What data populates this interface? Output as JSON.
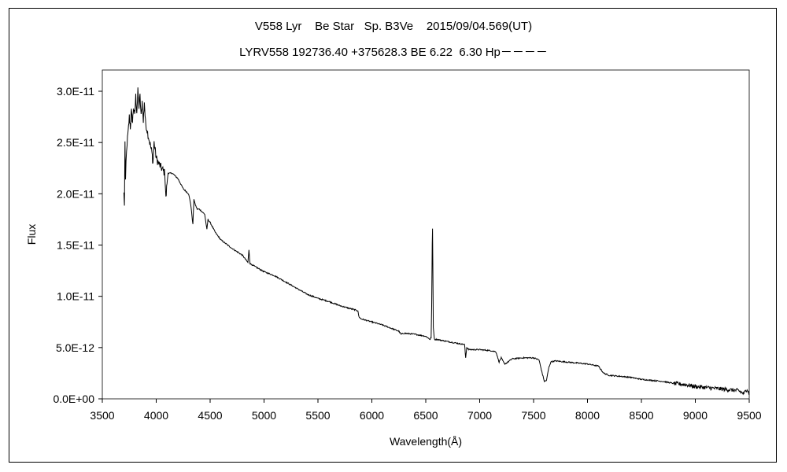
{
  "chart_data": {
    "type": "line",
    "title": "V558 Lyr    Be Star   Sp. B3Ve    2015/09/04.569(UT)",
    "subtitle": "LYRV558 192736.40 +375628.3 BE 6.22  6.30 Hp－－－－",
    "xlabel": "Wavelength(Å)",
    "ylabel": "Flux",
    "xlim": [
      3500,
      9500
    ],
    "ylim": [
      0,
      3e-11
    ],
    "x_ticks": [
      3500,
      4000,
      4500,
      5000,
      5500,
      6000,
      6500,
      7000,
      7500,
      8000,
      8500,
      9000,
      9500
    ],
    "x_tick_labels": [
      "3500",
      "4000",
      "4500",
      "5000",
      "5500",
      "6000",
      "6500",
      "7000",
      "7500",
      "8000",
      "8500",
      "9000",
      "9500"
    ],
    "y_ticks": [
      0,
      5e-12,
      1e-11,
      1.5e-11,
      2e-11,
      2.5e-11,
      3e-11
    ],
    "y_tick_labels": [
      "0.0E+00",
      "5.0E-12",
      "1.0E-11",
      "1.5E-11",
      "2.0E-11",
      "2.5E-11",
      "3.0E-11"
    ],
    "grid": false,
    "series": [
      {
        "color": "#000000",
        "x": [
          3700,
          3705,
          3710,
          3715,
          3720,
          3725,
          3730,
          3740,
          3750,
          3760,
          3770,
          3780,
          3790,
          3800,
          3810,
          3820,
          3830,
          3840,
          3850,
          3860,
          3870,
          3880,
          3890,
          3900,
          3920,
          3940,
          3960,
          3970,
          3980,
          4000,
          4020,
          4050,
          4080,
          4090,
          4100,
          4110,
          4120,
          4150,
          4200,
          4250,
          4300,
          4320,
          4340,
          4350,
          4360,
          4380,
          4400,
          4450,
          4470,
          4480,
          4500,
          4550,
          4600,
          4700,
          4800,
          4850,
          4860,
          4870,
          4900,
          5000,
          5100,
          5200,
          5300,
          5400,
          5500,
          5600,
          5700,
          5800,
          5870,
          5880,
          5900,
          6000,
          6100,
          6200,
          6250,
          6270,
          6300,
          6400,
          6500,
          6540,
          6550,
          6555,
          6560,
          6563,
          6566,
          6570,
          6580,
          6600,
          6700,
          6800,
          6860,
          6870,
          6880,
          6900,
          7000,
          7100,
          7150,
          7180,
          7200,
          7230,
          7250,
          7300,
          7400,
          7500,
          7550,
          7580,
          7600,
          7620,
          7640,
          7660,
          7700,
          7800,
          7900,
          8000,
          8100,
          8150,
          8200,
          8300,
          8400,
          8500,
          8600,
          8700,
          8800,
          8900,
          9000,
          9100,
          9200,
          9300,
          9400,
          9450,
          9480,
          9500
        ],
        "y": [
          2e-11,
          1.9e-11,
          2.5e-11,
          2.1e-11,
          2.3e-11,
          2.4e-11,
          2.5e-11,
          2.6e-11,
          2.75e-11,
          2.65e-11,
          2.8e-11,
          2.7e-11,
          2.85e-11,
          2.75e-11,
          2.95e-11,
          2.8e-11,
          3e-11,
          2.85e-11,
          2.95e-11,
          2.75e-11,
          2.9e-11,
          2.7e-11,
          2.9e-11,
          2.7e-11,
          2.6e-11,
          2.5e-11,
          2.4e-11,
          2.3e-11,
          2.5e-11,
          2.35e-11,
          2.3e-11,
          2.25e-11,
          2.2e-11,
          1.95e-11,
          2.1e-11,
          2.2e-11,
          2.2e-11,
          2.2e-11,
          2.15e-11,
          2.05e-11,
          2e-11,
          1.9e-11,
          1.7e-11,
          1.95e-11,
          1.9e-11,
          1.85e-11,
          1.85e-11,
          1.8e-11,
          1.65e-11,
          1.75e-11,
          1.72e-11,
          1.62e-11,
          1.55e-11,
          1.47e-11,
          1.4e-11,
          1.33e-11,
          1.45e-11,
          1.32e-11,
          1.3e-11,
          1.24e-11,
          1.2e-11,
          1.14e-11,
          1.08e-11,
          1.02e-11,
          9.8e-12,
          9.5e-12,
          9.1e-12,
          8.8e-12,
          8.6e-12,
          8e-12,
          7.8e-12,
          7.5e-12,
          7.2e-12,
          6.8e-12,
          6.6e-12,
          6.3e-12,
          6.4e-12,
          6.3e-12,
          6.1e-12,
          5.8e-12,
          6e-12,
          9e-12,
          1.5e-11,
          1.66e-11,
          1.3e-11,
          7e-12,
          5.8e-12,
          5.8e-12,
          5.6e-12,
          5.4e-12,
          5.3e-12,
          4e-12,
          5e-12,
          4.8e-12,
          4.8e-12,
          4.7e-12,
          4.6e-12,
          3.6e-12,
          4e-12,
          3.4e-12,
          3.5e-12,
          3.9e-12,
          4e-12,
          4e-12,
          3.8e-12,
          2.5e-12,
          1.7e-12,
          1.8e-12,
          3e-12,
          3.6e-12,
          3.7e-12,
          3.6e-12,
          3.5e-12,
          3.4e-12,
          3.2e-12,
          2.5e-12,
          2.3e-12,
          2.2e-12,
          2.1e-12,
          1.9e-12,
          1.8e-12,
          1.7e-12,
          1.5e-12,
          1.4e-12,
          1.2e-12,
          1.1e-12,
          1e-12,
          9e-13,
          8e-13,
          5e-13,
          1e-12,
          4e-13
        ]
      }
    ]
  }
}
